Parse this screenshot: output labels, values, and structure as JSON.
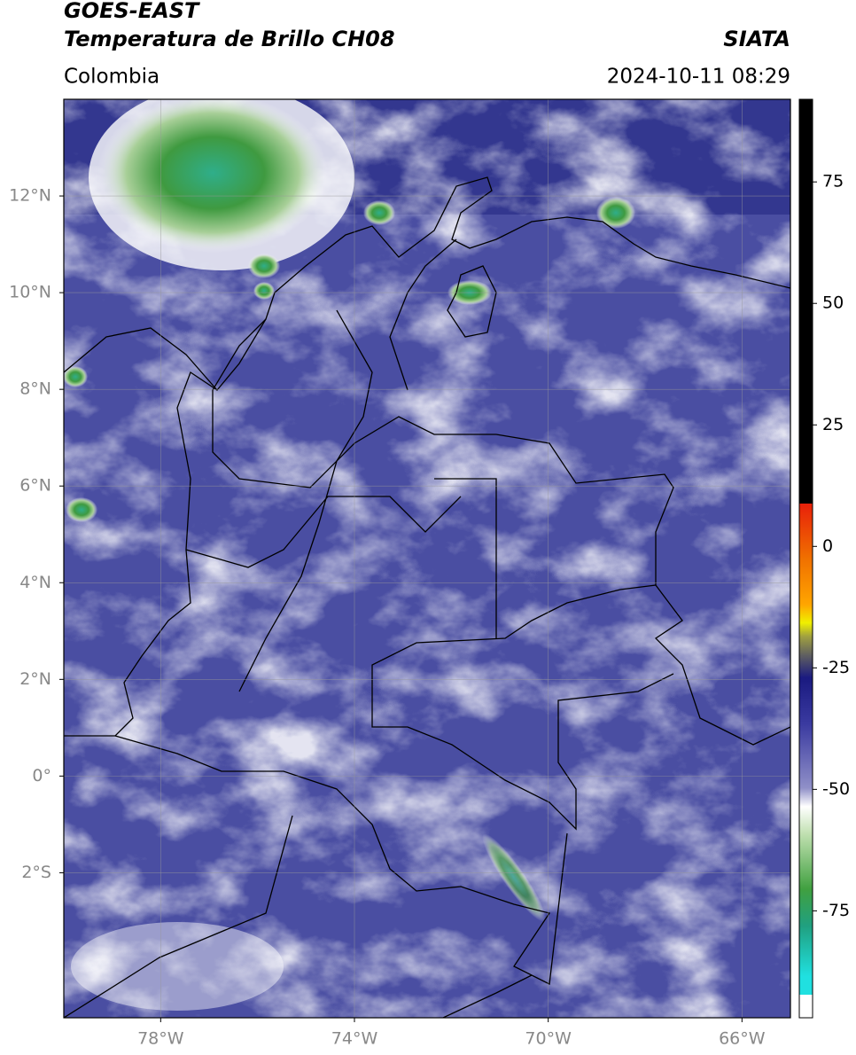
{
  "header": {
    "title": "GOES-EAST",
    "subtitle": "Temperatura de Brillo CH08",
    "source": "SIATA",
    "region": "Colombia",
    "timestamp": "2024-10-11 08:29"
  },
  "map": {
    "lonlim": [
      -80,
      -65
    ],
    "latlim": [
      -5,
      14
    ],
    "lat_ticks": [
      {
        "value": 12,
        "label": "12°N"
      },
      {
        "value": 10,
        "label": "10°N"
      },
      {
        "value": 8,
        "label": "8°N"
      },
      {
        "value": 6,
        "label": "6°N"
      },
      {
        "value": 4,
        "label": "4°N"
      },
      {
        "value": 2,
        "label": "2°N"
      },
      {
        "value": 0,
        "label": "0°"
      },
      {
        "value": -2,
        "label": "2°S"
      }
    ],
    "lon_ticks": [
      {
        "value": -78,
        "label": "78°W"
      },
      {
        "value": -74,
        "label": "74°W"
      },
      {
        "value": -70,
        "label": "70°W"
      },
      {
        "value": -66,
        "label": "66°W"
      }
    ],
    "grid": true
  },
  "colorbar": {
    "lim": [
      -97,
      92
    ],
    "ticks": [
      75,
      50,
      25,
      0,
      -25,
      -50,
      -75
    ]
  }
}
